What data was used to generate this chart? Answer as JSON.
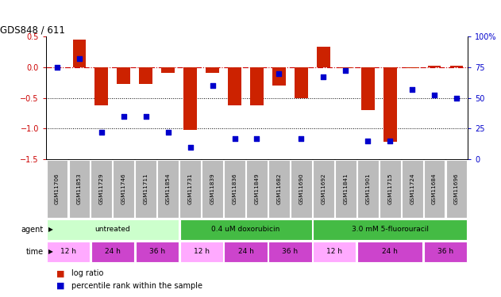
{
  "title": "GDS848 / 611",
  "samples": [
    "GSM11706",
    "GSM11853",
    "GSM11729",
    "GSM11746",
    "GSM11711",
    "GSM11854",
    "GSM11731",
    "GSM11839",
    "GSM11836",
    "GSM11849",
    "GSM11682",
    "GSM11690",
    "GSM11692",
    "GSM11841",
    "GSM11901",
    "GSM11715",
    "GSM11724",
    "GSM11684",
    "GSM11696"
  ],
  "log_ratio": [
    0.0,
    0.45,
    -0.62,
    -0.27,
    -0.27,
    -0.09,
    -1.02,
    -0.09,
    -0.62,
    -0.62,
    -0.3,
    -0.5,
    0.33,
    -0.02,
    -0.7,
    -1.22,
    -0.02,
    0.02,
    0.02
  ],
  "percentile": [
    75,
    82,
    22,
    35,
    35,
    22,
    10,
    60,
    17,
    17,
    70,
    17,
    67,
    72,
    15,
    15,
    57,
    52,
    50
  ],
  "ylim_left": [
    -1.5,
    0.5
  ],
  "ylim_right": [
    0,
    100
  ],
  "yticks_left": [
    -1.5,
    -1.0,
    -0.5,
    0.0,
    0.5
  ],
  "yticks_right": [
    0,
    25,
    50,
    75,
    100
  ],
  "hline_zero_color": "#cc0000",
  "hline_dotted_color": "#000000",
  "bar_color": "#cc2200",
  "scatter_color": "#0000cc",
  "agent_bg": [
    {
      "label": "untreated",
      "start": 0,
      "end": 6,
      "color": "#ccffcc"
    },
    {
      "label": "0.4 uM doxorubicin",
      "start": 6,
      "end": 12,
      "color": "#44bb44"
    },
    {
      "label": "3.0 mM 5-fluorouracil",
      "start": 12,
      "end": 19,
      "color": "#44bb44"
    }
  ],
  "time_bg": [
    {
      "label": "12 h",
      "start": 0,
      "end": 2,
      "color": "#ffaaff"
    },
    {
      "label": "24 h",
      "start": 2,
      "end": 4,
      "color": "#cc44cc"
    },
    {
      "label": "36 h",
      "start": 4,
      "end": 6,
      "color": "#cc44cc"
    },
    {
      "label": "12 h",
      "start": 6,
      "end": 8,
      "color": "#ffaaff"
    },
    {
      "label": "24 h",
      "start": 8,
      "end": 10,
      "color": "#cc44cc"
    },
    {
      "label": "36 h",
      "start": 10,
      "end": 12,
      "color": "#cc44cc"
    },
    {
      "label": "12 h",
      "start": 12,
      "end": 14,
      "color": "#ffaaff"
    },
    {
      "label": "24 h",
      "start": 14,
      "end": 17,
      "color": "#cc44cc"
    },
    {
      "label": "36 h",
      "start": 17,
      "end": 19,
      "color": "#cc44cc"
    }
  ],
  "legend_items": [
    {
      "label": "log ratio",
      "color": "#cc2200"
    },
    {
      "label": "percentile rank within the sample",
      "color": "#0000cc"
    }
  ],
  "background_color": "#ffffff",
  "sample_label_bg": "#bbbbbb"
}
